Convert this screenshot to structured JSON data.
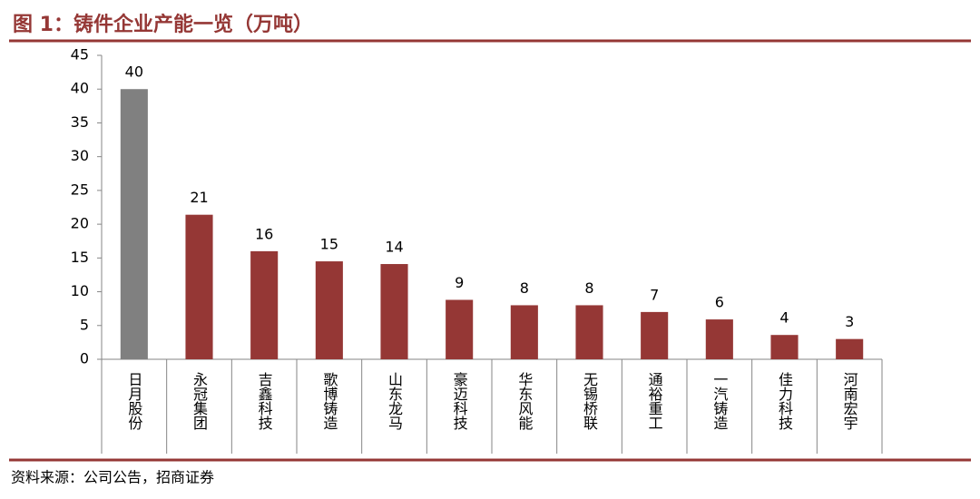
{
  "chart_data": {
    "type": "bar",
    "title": "图 1：铸件企业产能一览（万吨）",
    "source": "资料来源：公司公告，招商证券",
    "categories": [
      "日月股份",
      "永冠集团",
      "吉鑫科技",
      "歌博铸造",
      "山东龙马",
      "豪迈科技",
      "华东风能",
      "无锡桥联",
      "通裕重工",
      "一汽铸造",
      "佳力科技",
      "河南宏宇"
    ],
    "values": [
      40,
      21.4,
      16,
      14.5,
      14.1,
      8.8,
      8,
      8,
      7,
      5.9,
      3.6,
      3
    ],
    "value_labels": [
      "40",
      "21",
      "16",
      "15",
      "14",
      "9",
      "8",
      "8",
      "7",
      "6",
      "4",
      "3"
    ],
    "colors": [
      "#808080",
      "#953735",
      "#953735",
      "#953735",
      "#953735",
      "#953735",
      "#953735",
      "#953735",
      "#953735",
      "#953735",
      "#953735",
      "#953735"
    ],
    "ylim": [
      0,
      45
    ],
    "yticks": [
      0,
      5,
      10,
      15,
      20,
      25,
      30,
      35,
      40,
      45
    ],
    "grid": false
  }
}
